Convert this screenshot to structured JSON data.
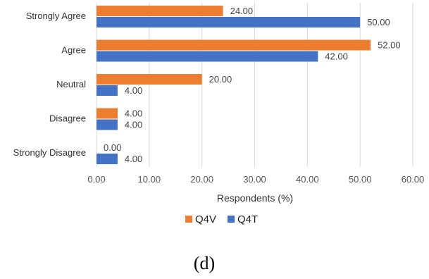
{
  "chart_data": {
    "type": "bar",
    "orientation": "horizontal",
    "categories": [
      "Strongly Agree",
      "Agree",
      "Neutral",
      "Disagree",
      "Strongly Disagree"
    ],
    "series": [
      {
        "name": "Q4V",
        "color": "#ED7D31",
        "values": [
          24.0,
          52.0,
          20.0,
          4.0,
          0.0
        ],
        "labels": [
          "24.00",
          "52.00",
          "20.00",
          "4.00",
          "0.00"
        ]
      },
      {
        "name": "Q4T",
        "color": "#4472C4",
        "values": [
          50.0,
          42.0,
          4.0,
          4.0,
          4.0
        ],
        "labels": [
          "50.00",
          "42.00",
          "4.00",
          "4.00",
          "4.00"
        ]
      }
    ],
    "xlabel": "Respondents (%)",
    "xlim": [
      0,
      60
    ],
    "xticks": [
      "0.00",
      "10.00",
      "20.00",
      "30.00",
      "40.00",
      "50.00",
      "60.00"
    ],
    "grid": "vertical",
    "legend": "bottom"
  },
  "caption": "(d)"
}
